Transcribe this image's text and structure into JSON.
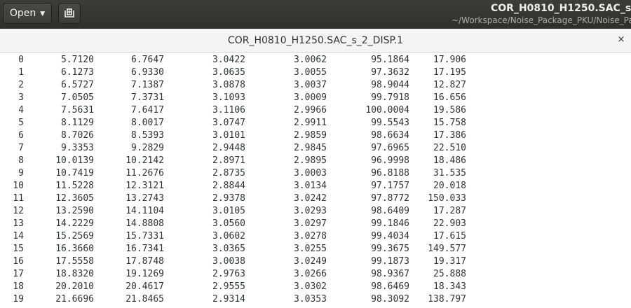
{
  "header": {
    "open_label": "Open",
    "title": "COR_H0810_H1250.SAC_s_2_",
    "subtitle": "~/Workspace/Noise_Package_PKU/Noise_Packa"
  },
  "tab": {
    "label": "COR_H0810_H1250.SAC_s_2_DISP.1",
    "close": "×"
  },
  "rows": [
    [
      "0",
      "5.7120",
      "6.7647",
      "3.0422",
      "3.0062",
      "95.1864",
      "17.906"
    ],
    [
      "1",
      "6.1273",
      "6.9330",
      "3.0635",
      "3.0055",
      "97.3632",
      "17.195"
    ],
    [
      "2",
      "6.5727",
      "7.1387",
      "3.0878",
      "3.0037",
      "98.9044",
      "12.827"
    ],
    [
      "3",
      "7.0505",
      "7.3731",
      "3.1093",
      "3.0009",
      "99.7918",
      "16.656"
    ],
    [
      "4",
      "7.5631",
      "7.6417",
      "3.1106",
      "2.9966",
      "100.0004",
      "19.586"
    ],
    [
      "5",
      "8.1129",
      "8.0017",
      "3.0747",
      "2.9911",
      "99.5543",
      "15.758"
    ],
    [
      "6",
      "8.7026",
      "8.5393",
      "3.0101",
      "2.9859",
      "98.6634",
      "17.386"
    ],
    [
      "7",
      "9.3353",
      "9.2829",
      "2.9448",
      "2.9845",
      "97.6965",
      "22.510"
    ],
    [
      "8",
      "10.0139",
      "10.2142",
      "2.8971",
      "2.9895",
      "96.9998",
      "18.486"
    ],
    [
      "9",
      "10.7419",
      "11.2676",
      "2.8735",
      "3.0003",
      "96.8188",
      "31.535"
    ],
    [
      "10",
      "11.5228",
      "12.3121",
      "2.8844",
      "3.0134",
      "97.1757",
      "20.018"
    ],
    [
      "11",
      "12.3605",
      "13.2743",
      "2.9378",
      "3.0242",
      "97.8772",
      "150.033"
    ],
    [
      "12",
      "13.2590",
      "14.1104",
      "3.0105",
      "3.0293",
      "98.6409",
      "17.287"
    ],
    [
      "13",
      "14.2229",
      "14.8808",
      "3.0560",
      "3.0297",
      "99.1846",
      "22.903"
    ],
    [
      "14",
      "15.2569",
      "15.7331",
      "3.0602",
      "3.0278",
      "99.4034",
      "17.615"
    ],
    [
      "15",
      "16.3660",
      "16.7341",
      "3.0365",
      "3.0255",
      "99.3675",
      "149.577"
    ],
    [
      "16",
      "17.5558",
      "17.8748",
      "3.0038",
      "3.0249",
      "99.1873",
      "19.317"
    ],
    [
      "17",
      "18.8320",
      "19.1269",
      "2.9763",
      "3.0266",
      "98.9367",
      "25.888"
    ],
    [
      "18",
      "20.2010",
      "20.4617",
      "2.9555",
      "3.0302",
      "98.6469",
      "18.343"
    ],
    [
      "19",
      "21.6696",
      "21.8465",
      "2.9314",
      "3.0353",
      "98.3092",
      "138.797"
    ]
  ]
}
